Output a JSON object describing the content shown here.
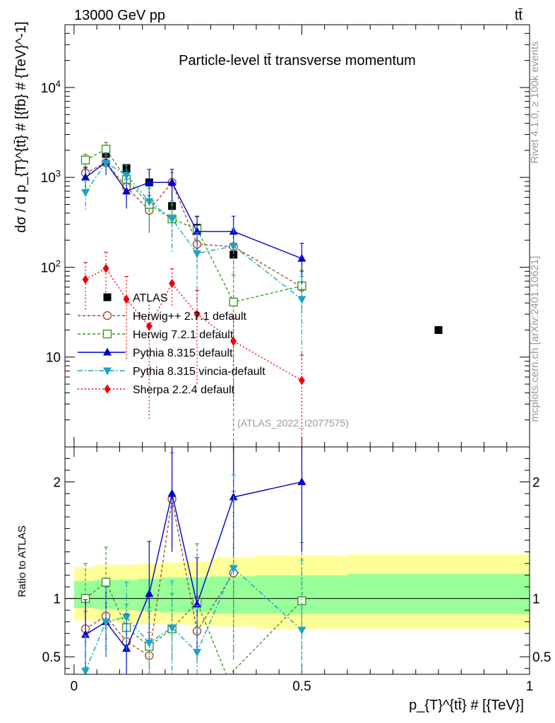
{
  "header": {
    "left": "13000 GeV pp",
    "right": "tt̄"
  },
  "side_labels": {
    "rivet": "Rivet 4.1.0, ≥ 100k events",
    "mcplots": "mcplots.cern.ch [arXiv:2401.10621]"
  },
  "colors": {
    "atlas": "#000000",
    "herwigpp": "#a0522d",
    "herwig7": "#3a9a1e",
    "pythia": "#0000cc",
    "vincia": "#1aa3c8",
    "sherpa": "#ee0000",
    "band_outer": "#ffff99",
    "band_inner": "#99ff99"
  },
  "chart_data": [
    {
      "type": "line",
      "title": "Particle-level tt̄ transverse momentum",
      "watermark": "(ATLAS_2022_I2077575)",
      "ylabel": "dσ / d p_{T}^{tt̄} # [{fb} # {TeV}^-1]",
      "xlim": [
        -0.02,
        1.0
      ],
      "ylim": [
        1.0,
        50000
      ],
      "yscale": "log",
      "y_ticks": [
        {
          "v": 10,
          "label": "10"
        },
        {
          "v": 100,
          "label": "10^2"
        },
        {
          "v": 1000,
          "label": "10^3"
        },
        {
          "v": 10000,
          "label": "10^4"
        }
      ],
      "series": [
        {
          "key": "atlas",
          "name": "ATLAS",
          "marker": "square-filled",
          "dash": "",
          "line": false,
          "x": [
            0.025,
            0.07,
            0.115,
            0.165,
            0.215,
            0.27,
            0.35,
            0.8
          ],
          "y": [
            1580,
            1820,
            1270,
            880,
            480,
            275,
            138,
            20
          ],
          "yerr": [
            0,
            0,
            0,
            0,
            0,
            0,
            0,
            0
          ]
        },
        {
          "key": "herwigpp",
          "name": "Herwig++ 2.7.1 default",
          "marker": "circle-open",
          "dash": "4,3",
          "line": true,
          "x": [
            0.025,
            0.07,
            0.115,
            0.165,
            0.215,
            0.27,
            0.35,
            0.5
          ],
          "y": [
            1120,
            1450,
            780,
            430,
            880,
            180,
            170,
            60
          ],
          "yerr": [
            150,
            300,
            200,
            200,
            250,
            80,
            80,
            30
          ]
        },
        {
          "key": "herwig7",
          "name": "Herwig 7.2.1 default",
          "marker": "square-open",
          "dash": "4,3",
          "line": true,
          "x": [
            0.025,
            0.07,
            0.115,
            0.165,
            0.215,
            0.27,
            0.35,
            0.5
          ],
          "y": [
            1560,
            2060,
            950,
            500,
            345,
            265,
            41,
            62
          ],
          "yerr": [
            250,
            400,
            250,
            250,
            150,
            100,
            41,
            30
          ]
        },
        {
          "key": "pythia",
          "name": "Pythia 8.315 default",
          "marker": "triangle-up",
          "dash": "",
          "line": true,
          "x": [
            0.025,
            0.07,
            0.115,
            0.165,
            0.215,
            0.27,
            0.35,
            0.5
          ],
          "y": [
            1000,
            1470,
            700,
            880,
            880,
            250,
            250,
            125
          ],
          "yerr": [
            300,
            400,
            250,
            350,
            350,
            120,
            120,
            60
          ]
        },
        {
          "key": "vincia",
          "name": "Pythia 8.315 vincia-default",
          "marker": "triangle-down",
          "dash": "7,3,2,3",
          "line": true,
          "x": [
            0.025,
            0.07,
            0.115,
            0.165,
            0.215,
            0.27,
            0.35,
            0.5
          ],
          "y": [
            680,
            1450,
            1060,
            540,
            345,
            142,
            172,
            44
          ],
          "yerr": [
            250,
            400,
            300,
            250,
            200,
            100,
            100,
            35
          ]
        },
        {
          "key": "sherpa",
          "name": "Sherpa 2.2.4 default",
          "marker": "diamond",
          "dash": "2,3",
          "line": true,
          "x": [
            0.025,
            0.07,
            0.115,
            0.165,
            0.215,
            0.27,
            0.35,
            0.5
          ],
          "y": [
            73,
            97,
            44,
            22,
            66,
            30,
            15,
            5.5
          ],
          "yerr": [
            40,
            50,
            35,
            20,
            30,
            25,
            12,
            5
          ]
        }
      ]
    },
    {
      "type": "line",
      "ylabel": "Ratio to ATLAS",
      "xlabel": "p_{T}^{tt̄} # [{TeV}]",
      "xlim": [
        -0.02,
        1.0
      ],
      "ylim": [
        0.35,
        2.3
      ],
      "y_ticks": [
        {
          "v": 0.5,
          "label": "0.5"
        },
        {
          "v": 1,
          "label": "1"
        },
        {
          "v": 2,
          "label": "2"
        }
      ],
      "x_ticks": [
        {
          "v": 0,
          "label": "0"
        },
        {
          "v": 0.5,
          "label": "0.5"
        },
        {
          "v": 1,
          "label": "1"
        }
      ],
      "band_edges": [
        0.0,
        0.045,
        0.095,
        0.14,
        0.19,
        0.245,
        0.3,
        0.4,
        0.6,
        1.0
      ],
      "band_outer": [
        [
          0.81,
          1.27
        ],
        [
          0.8,
          1.29
        ],
        [
          0.79,
          1.29
        ],
        [
          0.78,
          1.3
        ],
        [
          0.78,
          1.31
        ],
        [
          0.77,
          1.32
        ],
        [
          0.76,
          1.35
        ],
        [
          0.74,
          1.37
        ],
        [
          0.74,
          1.38
        ]
      ],
      "band_inner": [
        [
          0.92,
          1.15
        ],
        [
          0.91,
          1.16
        ],
        [
          0.9,
          1.16
        ],
        [
          0.89,
          1.17
        ],
        [
          0.88,
          1.18
        ],
        [
          0.88,
          1.18
        ],
        [
          0.87,
          1.19
        ],
        [
          0.87,
          1.2
        ],
        [
          0.87,
          1.21
        ]
      ],
      "series": [
        {
          "key": "herwigpp",
          "x": [
            0.025,
            0.07,
            0.115,
            0.165,
            0.215,
            0.27,
            0.35
          ],
          "y": [
            0.74,
            0.85,
            0.63,
            0.51,
            1.85,
            0.72,
            1.22
          ],
          "yerr": [
            0.15,
            0.25,
            0.2,
            0.2,
            0.4,
            0.3,
            0.7
          ]
        },
        {
          "key": "herwig7",
          "x": [
            0.025,
            0.07,
            0.115,
            0.165,
            0.215,
            0.27,
            0.335,
            0.34,
            0.5
          ],
          "y": [
            1.0,
            1.14,
            0.75,
            0.59,
            0.74,
            0.97,
            0.34,
            0.34,
            0.98
          ],
          "yerr": [
            0.3,
            0.3,
            0.2,
            0.3,
            0.3,
            0.5,
            0,
            0,
            0.5
          ]
        },
        {
          "key": "pythia",
          "x": [
            0.025,
            0.07,
            0.115,
            0.165,
            0.215,
            0.27,
            0.35,
            0.5
          ],
          "y": [
            0.69,
            0.8,
            0.57,
            1.04,
            1.9,
            0.95,
            1.87,
            2.0
          ],
          "yerr": [
            0.3,
            0.3,
            0.3,
            0.45,
            0.5,
            0.4,
            0.5,
            0.6
          ]
        },
        {
          "key": "vincia",
          "x": [
            0.025,
            0.07,
            0.115,
            0.165,
            0.215,
            0.27,
            0.35,
            0.5
          ],
          "y": [
            0.38,
            0.8,
            0.84,
            0.62,
            0.75,
            0.54,
            1.26,
            0.73
          ],
          "yerr": [
            0.3,
            0.3,
            0.3,
            0.3,
            0.4,
            0.4,
            0.8,
            0.6
          ]
        }
      ]
    }
  ]
}
